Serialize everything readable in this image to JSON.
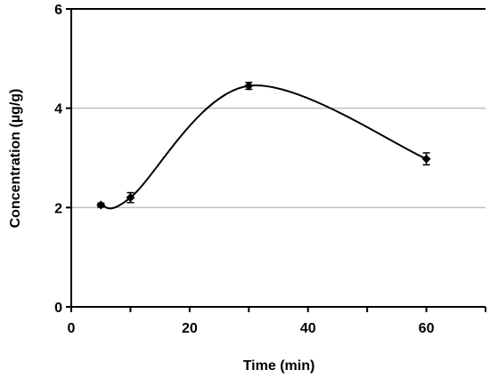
{
  "chart_data": {
    "type": "line",
    "title": "",
    "xlabel": "Time (min)",
    "ylabel": "Concentration (µg/g)",
    "xlim": [
      0,
      70
    ],
    "ylim": [
      0,
      6
    ],
    "x_ticks": [
      0,
      20,
      40,
      60
    ],
    "y_ticks": [
      0,
      2,
      4,
      6
    ],
    "grid": "horizontal gridlines at y = 2 and 4",
    "legend": "none",
    "smoothed": true,
    "marker": "diamond",
    "colors": {
      "line": "#000000",
      "grid": "#bfbfbf",
      "axis": "#000000"
    },
    "series": [
      {
        "x": [
          5,
          10,
          30,
          60
        ],
        "y": [
          2.05,
          2.2,
          4.45,
          2.98
        ],
        "error": [
          0.04,
          0.1,
          0.07,
          0.12
        ]
      }
    ]
  }
}
